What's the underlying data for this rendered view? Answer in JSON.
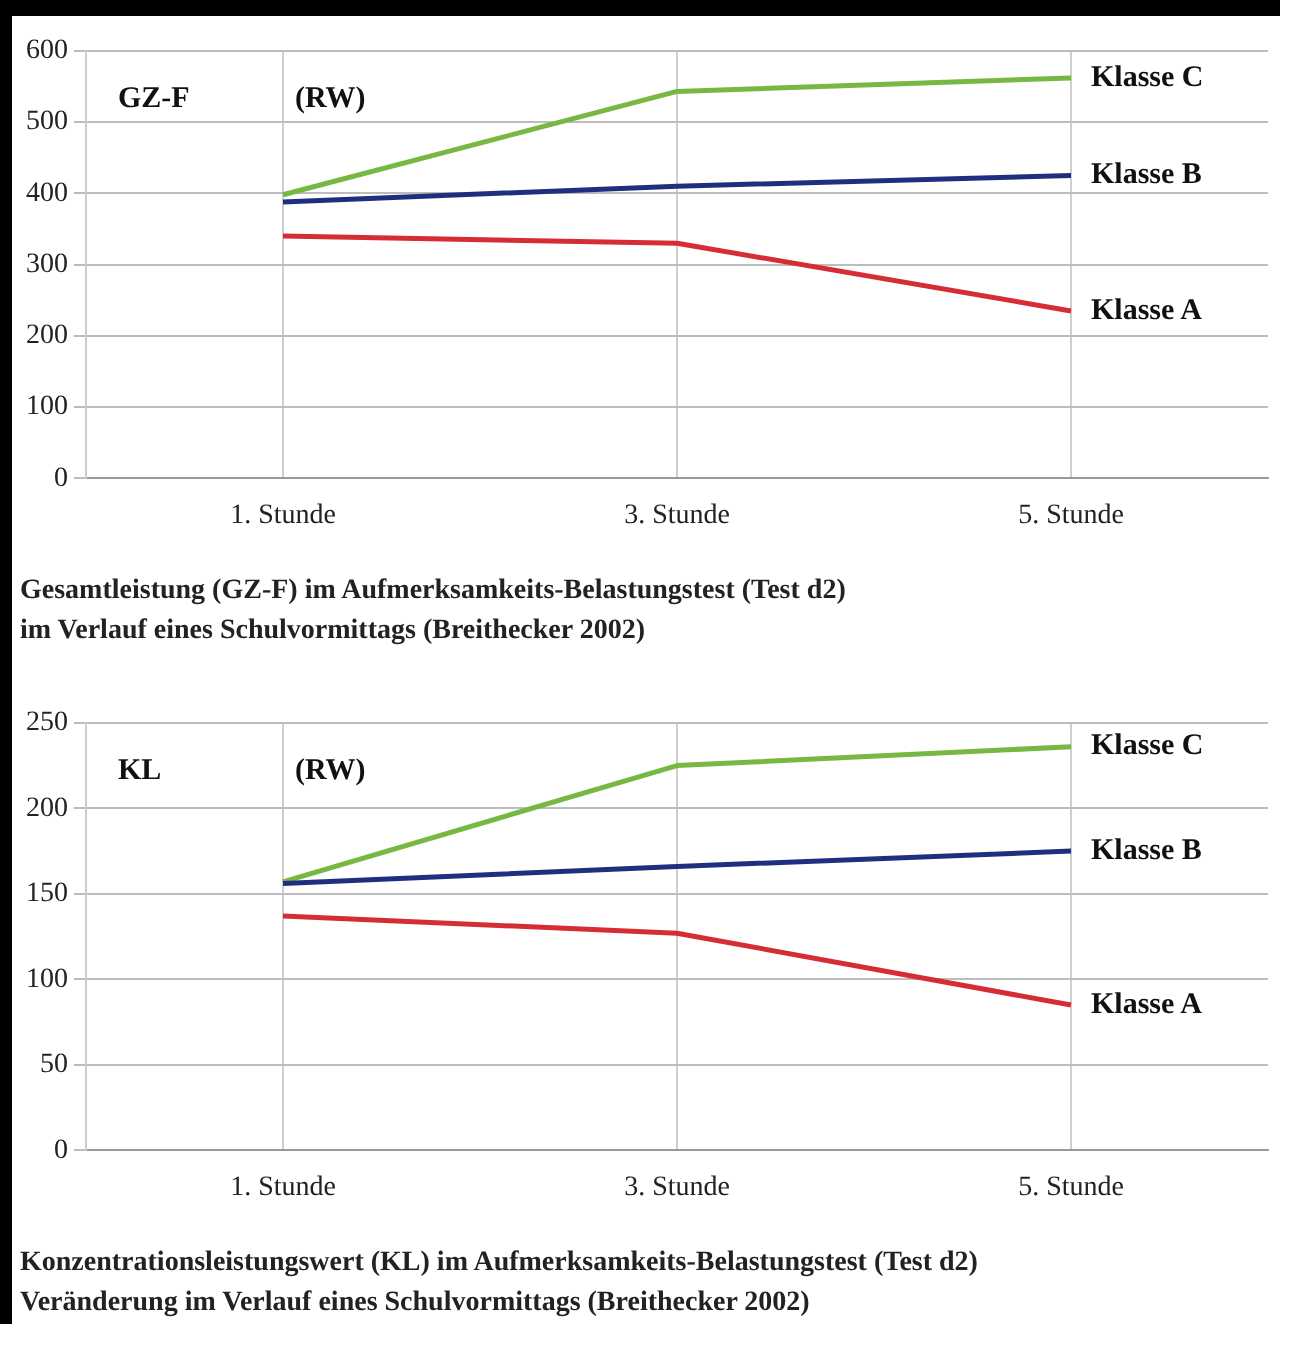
{
  "chart_data": [
    {
      "type": "line",
      "title": "Gesamtleistung (GZ-F) im Aufmerksamkeits-Belastungstest (Test d2)\nim Verlauf eines Schulvormittags (Breithecker 2002)",
      "ylabel": "GZ-F",
      "annotations": [
        "(RW)"
      ],
      "categories": [
        "1. Stunde",
        "3. Stunde",
        "5. Stunde"
      ],
      "series": [
        {
          "name": "Klasse A",
          "color": "#d62c36",
          "values": [
            340,
            330,
            235
          ]
        },
        {
          "name": "Klasse B",
          "color": "#1f2f7f",
          "values": [
            388,
            410,
            425
          ]
        },
        {
          "name": "Klasse C",
          "color": "#77b843",
          "values": [
            398,
            543,
            562
          ]
        }
      ],
      "ylim": [
        0,
        600
      ],
      "yticks": [
        0,
        100,
        200,
        300,
        400,
        500,
        600
      ],
      "grid": true,
      "legend": false,
      "marker": "none",
      "line_style": "solid"
    },
    {
      "type": "line",
      "title": "Konzentrationsleistungswert (KL) im Aufmerksamkeits-Belastungstest (Test d2)\nVeränderung im Verlauf eines Schulvormittags (Breithecker 2002)",
      "ylabel": "KL",
      "annotations": [
        "(RW)"
      ],
      "categories": [
        "1. Stunde",
        "3. Stunde",
        "5. Stunde"
      ],
      "series": [
        {
          "name": "Klasse A",
          "color": "#d62c36",
          "values": [
            137,
            127,
            85
          ]
        },
        {
          "name": "Klasse B",
          "color": "#1f2f7f",
          "values": [
            156,
            166,
            175
          ]
        },
        {
          "name": "Klasse C",
          "color": "#77b843",
          "values": [
            157,
            225,
            236
          ]
        }
      ],
      "ylim": [
        0,
        250
      ],
      "yticks": [
        0,
        50,
        100,
        150,
        200,
        250
      ],
      "grid": true,
      "legend": false,
      "marker": "none",
      "line_style": "solid"
    }
  ]
}
